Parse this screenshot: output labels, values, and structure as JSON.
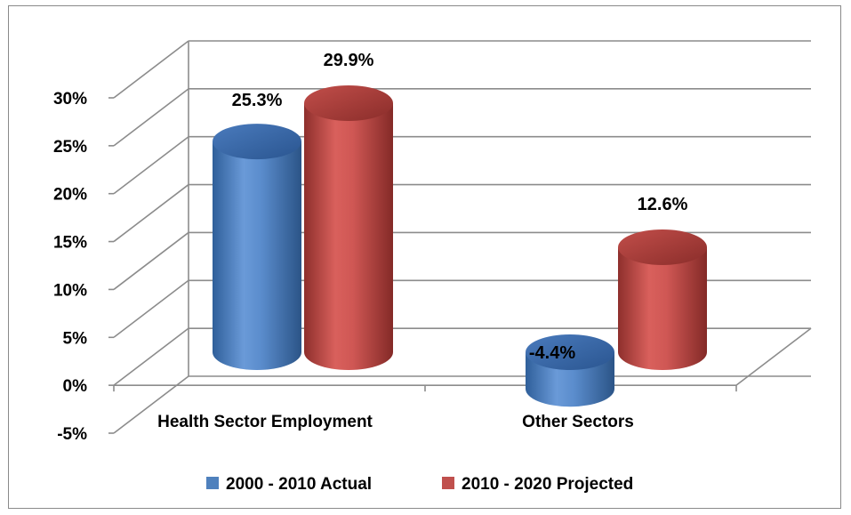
{
  "chart_data": {
    "type": "bar",
    "style": "3d-cylinder",
    "categories": [
      "Health Sector Employment",
      "Other Sectors"
    ],
    "series": [
      {
        "name": "2000 - 2010 Actual",
        "color": "#4f81bd",
        "values": [
          25.3,
          -4.4
        ],
        "labels": [
          "25.3%",
          "-4.4%"
        ]
      },
      {
        "name": "2010 - 2020 Projected",
        "color": "#c0504d",
        "values": [
          29.9,
          12.6
        ],
        "labels": [
          "29.9%",
          "12.6%"
        ]
      }
    ],
    "ylim": [
      -5,
      30
    ],
    "yticks": [
      -5,
      0,
      5,
      10,
      15,
      20,
      25,
      30
    ],
    "ytick_labels": [
      "-5%",
      "0%",
      "5%",
      "10%",
      "15%",
      "20%",
      "25%",
      "30%"
    ],
    "grid": true,
    "legend": "bottom",
    "title": "",
    "xlabel": "",
    "ylabel": ""
  }
}
